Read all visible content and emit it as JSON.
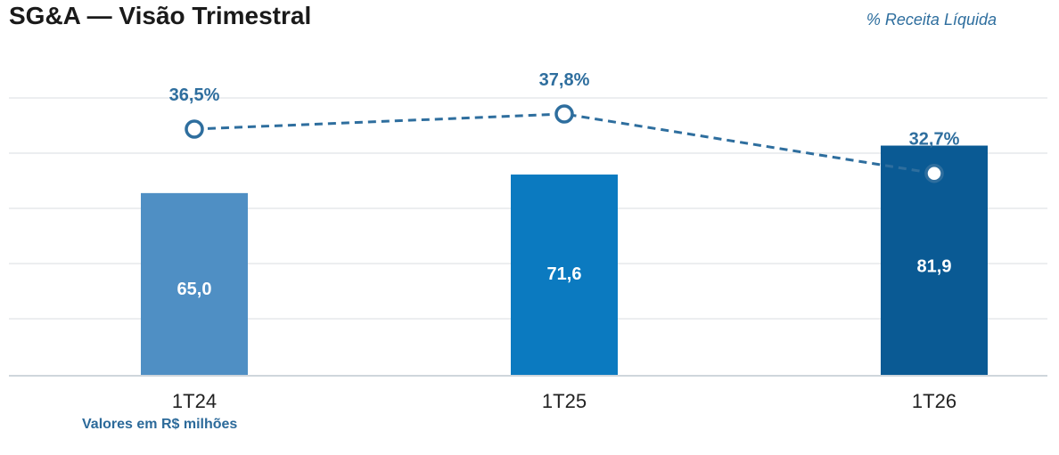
{
  "header": {
    "title": "SG&A — Visão Trimestral",
    "subtitle": "% Receita Líquida"
  },
  "footnote": "Valores em R$ milhões",
  "chart_data": {
    "type": "bar",
    "categories": [
      "1T24",
      "1T25",
      "1T26"
    ],
    "series": [
      {
        "values": [
          65.0,
          71.6,
          81.9
        ],
        "labels": [
          "65,0",
          "71,6",
          "81,9"
        ],
        "colors": [
          "#4f8fc4",
          "#0b7ac0",
          "#0a5a94"
        ]
      }
    ],
    "line_series": [
      {
        "values": [
          36.5,
          37.8,
          32.7
        ],
        "labels": [
          "36,5%",
          "37,8%",
          "32,7%"
        ],
        "color": "#2e6e9e"
      }
    ],
    "grid": true
  }
}
